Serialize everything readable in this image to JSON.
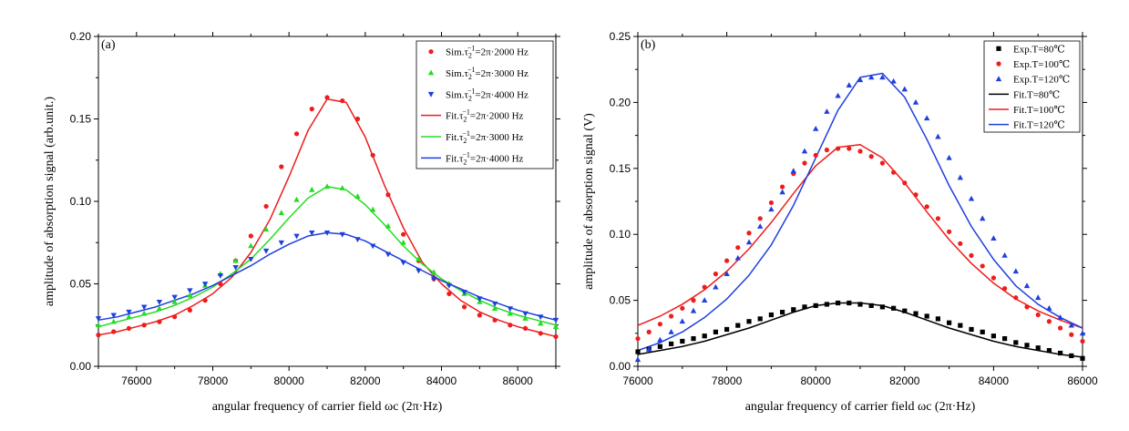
{
  "chart_data": [
    {
      "type": "scatter",
      "panel_label": "(a)",
      "xlabel": "angular frequency of carrier field ωc (2π·Hz)",
      "ylabel": "amplitude of absorption signal (arb.unit.)",
      "xlim": [
        75000,
        87000
      ],
      "ylim": [
        0,
        0.2
      ],
      "xticks": [
        76000,
        78000,
        80000,
        82000,
        84000,
        86000
      ],
      "yticks": [
        0.0,
        0.05,
        0.1,
        0.15,
        0.2
      ],
      "ytick_format": 2,
      "grid": false,
      "legend_position": "top-right",
      "series": [
        {
          "name": "Sim.τ₂⁻¹=2π·2000 Hz",
          "kind": "marker",
          "marker": "circle",
          "color": "#ee1c1c",
          "x": [
            75000,
            75400,
            75800,
            76200,
            76600,
            77000,
            77400,
            77800,
            78200,
            78600,
            79000,
            79400,
            79800,
            80200,
            80600,
            81000,
            81400,
            81800,
            82200,
            82600,
            83000,
            83400,
            83800,
            84200,
            84600,
            85000,
            85400,
            85800,
            86200,
            86600,
            87000
          ],
          "y": [
            0.019,
            0.021,
            0.023,
            0.025,
            0.027,
            0.03,
            0.034,
            0.04,
            0.05,
            0.064,
            0.079,
            0.097,
            0.121,
            0.141,
            0.156,
            0.163,
            0.161,
            0.15,
            0.128,
            0.104,
            0.08,
            0.064,
            0.053,
            0.044,
            0.036,
            0.031,
            0.028,
            0.025,
            0.023,
            0.02,
            0.018
          ]
        },
        {
          "name": "Sim.τ₂⁻¹=2π·3000 Hz",
          "kind": "marker",
          "marker": "triangle-up",
          "color": "#22dd22",
          "x": [
            75000,
            75400,
            75800,
            76200,
            76600,
            77000,
            77400,
            77800,
            78200,
            78600,
            79000,
            79400,
            79800,
            80200,
            80600,
            81000,
            81400,
            81800,
            82200,
            82600,
            83000,
            83400,
            83800,
            84200,
            84600,
            85000,
            85400,
            85800,
            86200,
            86600,
            87000
          ],
          "y": [
            0.025,
            0.027,
            0.03,
            0.032,
            0.035,
            0.039,
            0.043,
            0.049,
            0.056,
            0.064,
            0.073,
            0.083,
            0.093,
            0.101,
            0.107,
            0.109,
            0.108,
            0.103,
            0.095,
            0.085,
            0.075,
            0.065,
            0.057,
            0.05,
            0.044,
            0.039,
            0.035,
            0.032,
            0.029,
            0.026,
            0.024
          ]
        },
        {
          "name": "Sim.τ₂⁻¹=2π·4000 Hz",
          "kind": "marker",
          "marker": "triangle-down",
          "color": "#1f3fdd",
          "x": [
            75000,
            75400,
            75800,
            76200,
            76600,
            77000,
            77400,
            77800,
            78200,
            78600,
            79000,
            79400,
            79800,
            80200,
            80600,
            81000,
            81400,
            81800,
            82200,
            82600,
            83000,
            83400,
            83800,
            84200,
            84600,
            85000,
            85400,
            85800,
            86200,
            86600,
            87000
          ],
          "y": [
            0.029,
            0.031,
            0.033,
            0.036,
            0.039,
            0.042,
            0.046,
            0.05,
            0.055,
            0.06,
            0.065,
            0.07,
            0.075,
            0.079,
            0.081,
            0.081,
            0.08,
            0.077,
            0.073,
            0.068,
            0.063,
            0.058,
            0.053,
            0.049,
            0.045,
            0.041,
            0.038,
            0.035,
            0.032,
            0.03,
            0.028
          ]
        },
        {
          "name": "Fit.τ₂⁻¹=2π·2000 Hz",
          "kind": "line",
          "color": "#ee1c1c",
          "x": [
            75000,
            75500,
            76000,
            76500,
            77000,
            77500,
            78000,
            78500,
            79000,
            79500,
            80000,
            80500,
            81000,
            81500,
            82000,
            82500,
            83000,
            83500,
            84000,
            84500,
            85000,
            85500,
            86000,
            86500,
            87000
          ],
          "y": [
            0.019,
            0.021,
            0.024,
            0.027,
            0.031,
            0.037,
            0.044,
            0.054,
            0.069,
            0.089,
            0.115,
            0.143,
            0.162,
            0.16,
            0.139,
            0.11,
            0.084,
            0.063,
            0.05,
            0.04,
            0.033,
            0.028,
            0.024,
            0.021,
            0.018
          ]
        },
        {
          "name": "Fit.τ₂⁻¹=2π·3000 Hz",
          "kind": "line",
          "color": "#22dd22",
          "x": [
            75000,
            75500,
            76000,
            76500,
            77000,
            77500,
            78000,
            78500,
            79000,
            79500,
            80000,
            80500,
            81000,
            81500,
            82000,
            82500,
            83000,
            83500,
            84000,
            84500,
            85000,
            85500,
            86000,
            86500,
            87000
          ],
          "y": [
            0.024,
            0.027,
            0.03,
            0.033,
            0.037,
            0.042,
            0.048,
            0.056,
            0.065,
            0.077,
            0.09,
            0.102,
            0.109,
            0.107,
            0.098,
            0.086,
            0.073,
            0.062,
            0.053,
            0.046,
            0.04,
            0.035,
            0.031,
            0.028,
            0.025
          ]
        },
        {
          "name": "Fit.τ₂⁻¹=2π·4000 Hz",
          "kind": "line",
          "color": "#1f3fdd",
          "x": [
            75000,
            75500,
            76000,
            76500,
            77000,
            77500,
            78000,
            78500,
            79000,
            79500,
            80000,
            80500,
            81000,
            81500,
            82000,
            82500,
            83000,
            83500,
            84000,
            84500,
            85000,
            85500,
            86000,
            86500,
            87000
          ],
          "y": [
            0.028,
            0.03,
            0.033,
            0.036,
            0.04,
            0.044,
            0.049,
            0.055,
            0.061,
            0.068,
            0.074,
            0.079,
            0.081,
            0.08,
            0.076,
            0.07,
            0.064,
            0.058,
            0.052,
            0.047,
            0.042,
            0.038,
            0.034,
            0.031,
            0.028
          ]
        }
      ]
    },
    {
      "type": "scatter",
      "panel_label": "(b)",
      "xlabel": "angular frequency of carrier field ωc (2π·Hz)",
      "ylabel": "amplitude of absorption signal (V)",
      "xlim": [
        76000,
        86000
      ],
      "ylim": [
        0,
        0.25
      ],
      "xticks": [
        76000,
        78000,
        80000,
        82000,
        84000,
        86000
      ],
      "yticks": [
        0.0,
        0.05,
        0.1,
        0.15,
        0.2,
        0.25
      ],
      "ytick_format": 2,
      "grid": false,
      "legend_position": "top-right",
      "series": [
        {
          "name": "Exp.T=80℃",
          "kind": "marker",
          "marker": "square",
          "color": "#000000",
          "x": [
            76000,
            76250,
            76500,
            76750,
            77000,
            77250,
            77500,
            77750,
            78000,
            78250,
            78500,
            78750,
            79000,
            79250,
            79500,
            79750,
            80000,
            80250,
            80500,
            80750,
            81000,
            81250,
            81500,
            81750,
            82000,
            82250,
            82500,
            82750,
            83000,
            83250,
            83500,
            83750,
            84000,
            84250,
            84500,
            84750,
            85000,
            85250,
            85500,
            85750,
            86000
          ],
          "y": [
            0.011,
            0.013,
            0.015,
            0.017,
            0.019,
            0.021,
            0.023,
            0.026,
            0.028,
            0.031,
            0.034,
            0.036,
            0.039,
            0.041,
            0.043,
            0.045,
            0.046,
            0.047,
            0.048,
            0.048,
            0.047,
            0.046,
            0.045,
            0.044,
            0.042,
            0.04,
            0.038,
            0.036,
            0.033,
            0.031,
            0.028,
            0.026,
            0.023,
            0.021,
            0.018,
            0.016,
            0.014,
            0.012,
            0.01,
            0.008,
            0.006
          ]
        },
        {
          "name": "Exp.T=100℃",
          "kind": "marker",
          "marker": "circle",
          "color": "#ee1c1c",
          "x": [
            76000,
            76250,
            76500,
            76750,
            77000,
            77250,
            77500,
            77750,
            78000,
            78250,
            78500,
            78750,
            79000,
            79250,
            79500,
            79750,
            80000,
            80250,
            80500,
            80750,
            81000,
            81250,
            81500,
            81750,
            82000,
            82250,
            82500,
            82750,
            83000,
            83250,
            83500,
            83750,
            84000,
            84250,
            84500,
            84750,
            85000,
            85250,
            85500,
            85750,
            86000
          ],
          "y": [
            0.021,
            0.026,
            0.032,
            0.038,
            0.044,
            0.05,
            0.06,
            0.07,
            0.08,
            0.09,
            0.101,
            0.112,
            0.124,
            0.136,
            0.146,
            0.154,
            0.16,
            0.164,
            0.165,
            0.165,
            0.163,
            0.159,
            0.154,
            0.147,
            0.139,
            0.13,
            0.121,
            0.112,
            0.102,
            0.093,
            0.084,
            0.076,
            0.067,
            0.059,
            0.052,
            0.045,
            0.039,
            0.034,
            0.029,
            0.024,
            0.019
          ]
        },
        {
          "name": "Exp.T=120℃",
          "kind": "marker",
          "marker": "triangle-up",
          "color": "#1f3fdd",
          "x": [
            76000,
            76250,
            76500,
            76750,
            77000,
            77250,
            77500,
            77750,
            78000,
            78250,
            78500,
            78750,
            79000,
            79250,
            79500,
            79750,
            80000,
            80250,
            80500,
            80750,
            81000,
            81250,
            81500,
            81750,
            82000,
            82250,
            82500,
            82750,
            83000,
            83250,
            83500,
            83750,
            84000,
            84250,
            84500,
            84750,
            85000,
            85250,
            85500,
            85750,
            86000
          ],
          "y": [
            0.005,
            0.013,
            0.02,
            0.026,
            0.034,
            0.042,
            0.05,
            0.06,
            0.07,
            0.082,
            0.094,
            0.106,
            0.119,
            0.132,
            0.148,
            0.163,
            0.18,
            0.193,
            0.205,
            0.213,
            0.217,
            0.219,
            0.219,
            0.216,
            0.21,
            0.2,
            0.188,
            0.174,
            0.158,
            0.143,
            0.127,
            0.112,
            0.097,
            0.084,
            0.072,
            0.061,
            0.052,
            0.044,
            0.037,
            0.031,
            0.025
          ]
        },
        {
          "name": "Fit.T=80℃",
          "kind": "line",
          "color": "#000000",
          "x": [
            76000,
            76500,
            77000,
            77500,
            78000,
            78500,
            79000,
            79500,
            80000,
            80500,
            81000,
            81500,
            82000,
            82500,
            83000,
            83500,
            84000,
            84500,
            85000,
            85500,
            86000
          ],
          "y": [
            0.009,
            0.012,
            0.015,
            0.019,
            0.024,
            0.029,
            0.035,
            0.041,
            0.046,
            0.048,
            0.048,
            0.046,
            0.041,
            0.035,
            0.029,
            0.024,
            0.019,
            0.015,
            0.012,
            0.009,
            0.007
          ]
        },
        {
          "name": "Fit.T=100℃",
          "kind": "line",
          "color": "#ee1c1c",
          "x": [
            76000,
            76500,
            77000,
            77500,
            78000,
            78500,
            79000,
            79500,
            80000,
            80500,
            81000,
            81500,
            82000,
            82500,
            83000,
            83500,
            84000,
            84500,
            85000,
            85500,
            86000
          ],
          "y": [
            0.031,
            0.038,
            0.047,
            0.058,
            0.072,
            0.089,
            0.109,
            0.131,
            0.152,
            0.166,
            0.168,
            0.158,
            0.139,
            0.117,
            0.096,
            0.078,
            0.063,
            0.051,
            0.042,
            0.035,
            0.029
          ]
        },
        {
          "name": "Fit.T=120℃",
          "kind": "line",
          "color": "#1f3fdd",
          "x": [
            76000,
            76500,
            77000,
            77500,
            78000,
            78500,
            79000,
            79500,
            80000,
            80500,
            81000,
            81500,
            82000,
            82500,
            83000,
            83500,
            84000,
            84500,
            85000,
            85500,
            86000
          ],
          "y": [
            0.012,
            0.018,
            0.026,
            0.037,
            0.051,
            0.069,
            0.092,
            0.122,
            0.158,
            0.194,
            0.219,
            0.222,
            0.204,
            0.172,
            0.137,
            0.106,
            0.081,
            0.061,
            0.047,
            0.037,
            0.029
          ]
        }
      ]
    }
  ]
}
